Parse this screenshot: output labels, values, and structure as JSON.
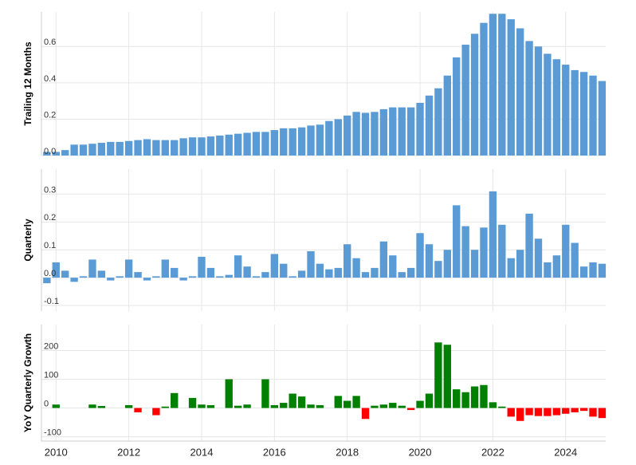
{
  "chart_data": [
    {
      "type": "bar",
      "y_label": "Trailing 12 Months",
      "color": "#5b9bd5",
      "grid": true,
      "x": [
        2009.75,
        2010,
        2010.25,
        2010.5,
        2010.75,
        2011,
        2011.25,
        2011.5,
        2011.75,
        2012,
        2012.25,
        2012.5,
        2012.75,
        2013,
        2013.25,
        2013.5,
        2013.75,
        2014,
        2014.25,
        2014.5,
        2014.75,
        2015,
        2015.25,
        2015.5,
        2015.75,
        2016,
        2016.25,
        2016.5,
        2016.75,
        2017,
        2017.25,
        2017.5,
        2017.75,
        2018,
        2018.25,
        2018.5,
        2018.75,
        2019,
        2019.25,
        2019.5,
        2019.75,
        2020,
        2020.25,
        2020.5,
        2020.75,
        2021,
        2021.25,
        2021.5,
        2021.75,
        2022,
        2022.25,
        2022.5,
        2022.75,
        2023,
        2023.25,
        2023.5,
        2023.75,
        2024,
        2024.25,
        2024.5,
        2024.75,
        2025
      ],
      "values": [
        0.02,
        0.02,
        0.03,
        0.06,
        0.06,
        0.065,
        0.07,
        0.075,
        0.075,
        0.08,
        0.085,
        0.09,
        0.085,
        0.085,
        0.085,
        0.095,
        0.1,
        0.1,
        0.105,
        0.11,
        0.115,
        0.12,
        0.125,
        0.13,
        0.13,
        0.14,
        0.15,
        0.15,
        0.155,
        0.165,
        0.17,
        0.19,
        0.2,
        0.22,
        0.24,
        0.235,
        0.24,
        0.255,
        0.265,
        0.265,
        0.265,
        0.29,
        0.33,
        0.37,
        0.44,
        0.54,
        0.61,
        0.67,
        0.73,
        0.78,
        0.78,
        0.75,
        0.7,
        0.63,
        0.6,
        0.56,
        0.53,
        0.5,
        0.47,
        0.46,
        0.44,
        0.41
      ],
      "xlim": [
        2009.6,
        2025.1
      ],
      "ylim": [
        0,
        0.79
      ],
      "yticks": [
        {
          "value": 0,
          "label": "0.0"
        },
        0.2,
        0.4,
        0.6
      ]
    },
    {
      "type": "bar",
      "y_label": "Quarterly",
      "color": "#5b9bd5",
      "grid": true,
      "x": [
        2009.75,
        2010,
        2010.25,
        2010.5,
        2010.75,
        2011,
        2011.25,
        2011.5,
        2011.75,
        2012,
        2012.25,
        2012.5,
        2012.75,
        2013,
        2013.25,
        2013.5,
        2013.75,
        2014,
        2014.25,
        2014.5,
        2014.75,
        2015,
        2015.25,
        2015.5,
        2015.75,
        2016,
        2016.25,
        2016.5,
        2016.75,
        2017,
        2017.25,
        2017.5,
        2017.75,
        2018,
        2018.25,
        2018.5,
        2018.75,
        2019,
        2019.25,
        2019.5,
        2019.75,
        2020,
        2020.25,
        2020.5,
        2020.75,
        2021,
        2021.25,
        2021.5,
        2021.75,
        2022,
        2022.25,
        2022.5,
        2022.75,
        2023,
        2023.25,
        2023.5,
        2023.75,
        2024,
        2024.25,
        2024.5,
        2024.75,
        2025
      ],
      "values": [
        -0.02,
        0.055,
        0.025,
        -0.015,
        0.005,
        0.065,
        0.025,
        -0.01,
        0.005,
        0.065,
        0.02,
        -0.01,
        0.005,
        0.065,
        0.035,
        -0.01,
        0.005,
        0.075,
        0.035,
        0.005,
        0.01,
        0.08,
        0.04,
        0.005,
        0.02,
        0.085,
        0.05,
        0.005,
        0.025,
        0.095,
        0.05,
        0.03,
        0.035,
        0.12,
        0.07,
        0.02,
        0.035,
        0.13,
        0.08,
        0.02,
        0.035,
        0.16,
        0.12,
        0.06,
        0.1,
        0.26,
        0.185,
        0.1,
        0.18,
        0.31,
        0.19,
        0.07,
        0.1,
        0.23,
        0.14,
        0.055,
        0.08,
        0.19,
        0.125,
        0.04,
        0.055,
        0.05
      ],
      "xlim": [
        2009.6,
        2025.1
      ],
      "ylim": [
        -0.12,
        0.39
      ],
      "yticks": [
        -0.1,
        {
          "value": 0,
          "label": "0.0"
        },
        0.1,
        0.2,
        0.3
      ]
    },
    {
      "type": "bar",
      "y_label": "YoY Quarterly Growth",
      "positive_color": "#008000",
      "negative_color": "#ff0000",
      "grid": true,
      "x": [
        2009.75,
        2010,
        2010.25,
        2010.5,
        2010.75,
        2011,
        2011.25,
        2011.5,
        2011.75,
        2012,
        2012.25,
        2012.5,
        2012.75,
        2013,
        2013.25,
        2013.5,
        2013.75,
        2014,
        2014.25,
        2014.5,
        2014.75,
        2015,
        2015.25,
        2015.5,
        2015.75,
        2016,
        2016.25,
        2016.5,
        2016.75,
        2017,
        2017.25,
        2017.5,
        2017.75,
        2018,
        2018.25,
        2018.5,
        2018.75,
        2019,
        2019.25,
        2019.5,
        2019.75,
        2020,
        2020.25,
        2020.5,
        2020.75,
        2021,
        2021.25,
        2021.5,
        2021.75,
        2022,
        2022.25,
        2022.5,
        2022.75,
        2023,
        2023.25,
        2023.5,
        2023.75,
        2024,
        2024.25,
        2024.5,
        2024.75,
        2025
      ],
      "values": [
        null,
        12,
        0,
        0,
        0,
        12,
        7,
        0,
        0,
        10,
        -15,
        0,
        -25,
        5,
        52,
        0,
        35,
        12,
        10,
        0,
        100,
        8,
        12,
        0,
        100,
        10,
        18,
        50,
        40,
        12,
        10,
        0,
        42,
        25,
        42,
        -38,
        8,
        12,
        18,
        8,
        -7,
        25,
        50,
        228,
        220,
        65,
        55,
        75,
        80,
        20,
        5,
        -30,
        -45,
        -25,
        -28,
        -28,
        -25,
        -20,
        -15,
        -10,
        -30,
        -35
      ],
      "xlim": [
        2009.6,
        2025.1
      ],
      "ylim": [
        -115,
        290
      ],
      "yticks": [
        -100,
        0,
        100,
        200
      ],
      "xticks": [
        2010,
        2012,
        2014,
        2016,
        2018,
        2020,
        2022,
        2024
      ]
    }
  ]
}
